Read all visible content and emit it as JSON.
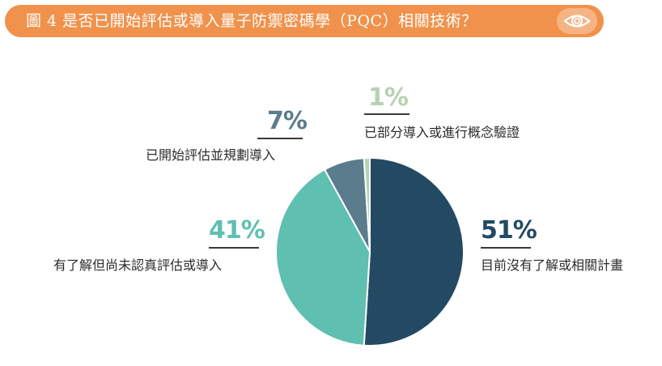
{
  "header": {
    "title": "圖 4 是否已開始評估或導入量子防禦密碼學（PQC）相關技術？",
    "icon": "eye-icon"
  },
  "colors": {
    "banner": "#f0924c",
    "banner_icon_bg": "#f6b383"
  },
  "chart_data": {
    "type": "pie",
    "title": "",
    "slices": [
      {
        "label": "目前沒有了解或相關計畫",
        "value": 51,
        "display": "51%",
        "color": "#234a62"
      },
      {
        "label": "有了解但尚未認真評估或導入",
        "value": 41,
        "display": "41%",
        "color": "#5fbfb1"
      },
      {
        "label": "已開始評估並規劃導入",
        "value": 7,
        "display": "7%",
        "color": "#5b7c8c"
      },
      {
        "label": "已部分導入或進行概念驗證",
        "value": 1,
        "display": "1%",
        "color": "#b5d3b0"
      }
    ]
  }
}
